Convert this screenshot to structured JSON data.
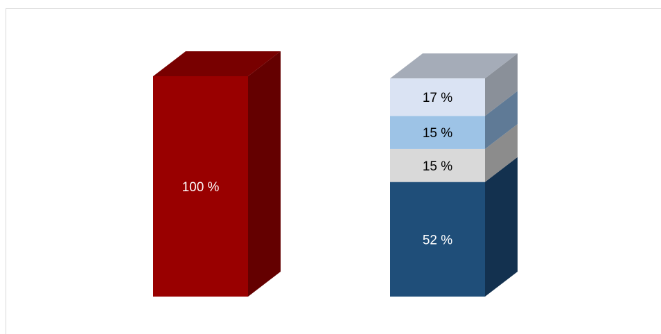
{
  "chart_data": {
    "type": "bar",
    "stacked": true,
    "style": "3d-column",
    "title": "",
    "xlabel": "",
    "ylabel": "",
    "ylim": [
      0,
      100
    ],
    "categories": [
      "",
      ""
    ],
    "series": [
      {
        "values": [
          100,
          52
        ],
        "labels": [
          "100 %",
          "52 %"
        ],
        "colors": [
          "#990000",
          "#1F4E79"
        ],
        "side_colors": [
          "#640000",
          "#13314F"
        ],
        "top_colors": [
          "#780000",
          "#1A4064"
        ],
        "label_colors": [
          "#ffffff",
          "#ffffff"
        ]
      },
      {
        "values": [
          0,
          15
        ],
        "labels": [
          "",
          "15 %"
        ],
        "colors": [
          "#990000",
          "#D9D9D9"
        ],
        "side_colors": [
          "#640000",
          "#8C8C8C"
        ],
        "top_colors": [
          "#780000",
          "#BFBFBF"
        ],
        "label_colors": [
          "#000000",
          "#000000"
        ]
      },
      {
        "values": [
          0,
          15
        ],
        "labels": [
          "",
          "15 %"
        ],
        "colors": [
          "#990000",
          "#9DC3E6"
        ],
        "side_colors": [
          "#640000",
          "#5F7A96"
        ],
        "top_colors": [
          "#780000",
          "#8AA9C7"
        ],
        "label_colors": [
          "#000000",
          "#000000"
        ]
      },
      {
        "values": [
          0,
          17
        ],
        "labels": [
          "",
          "17 %"
        ],
        "colors": [
          "#990000",
          "#DAE3F3"
        ],
        "side_colors": [
          "#640000",
          "#8A9099"
        ],
        "top_colors": [
          "#780000",
          "#A5ACB8"
        ],
        "label_colors": [
          "#000000",
          "#000000"
        ]
      }
    ]
  }
}
